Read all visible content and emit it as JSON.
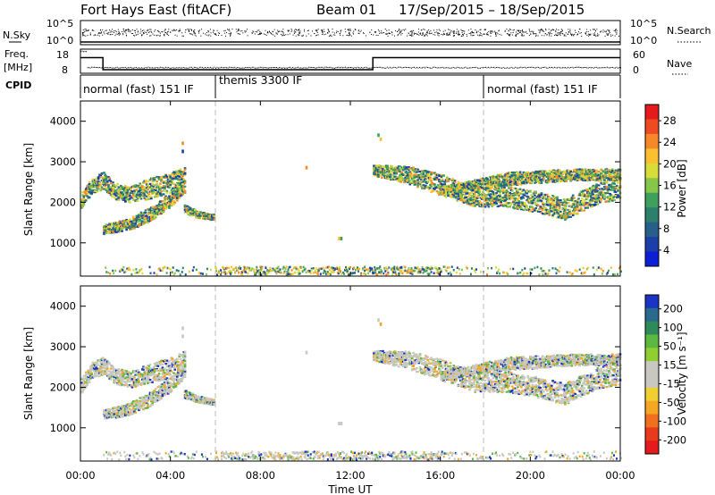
{
  "header": {
    "radar": "Fort Hays East (fitACF)",
    "beam": "Beam 01",
    "date_range": "17/Sep/2015 – 18/Sep/2015"
  },
  "strips": {
    "nsky_label": "N.Sky",
    "nsky_ticks": [
      "10^5",
      "10^0"
    ],
    "nsearch_label": "N.Search",
    "nsearch_ticks": [
      "10^5",
      "10^0"
    ],
    "freq_label_1": "Freq.",
    "freq_label_2": "[MHz]",
    "freq_ticks": [
      "18",
      "8"
    ],
    "nave_label": "Nave",
    "nave_ticks": [
      "60",
      "0"
    ],
    "cpid_label": "CPID"
  },
  "cpid_segments": [
    {
      "label": "normal (fast) 151 IF",
      "start": 0,
      "end": 6
    },
    {
      "label": "themis 3300 IF",
      "start": 6,
      "end": 18
    },
    {
      "label": "normal (fast) 151 IF",
      "start": 18,
      "end": 24
    }
  ],
  "colorbars": {
    "power": {
      "label": "Power [dB]",
      "ticks": [
        "28",
        "24",
        "20",
        "16",
        "12",
        "8",
        "4"
      ],
      "colors": [
        "#e41a1c",
        "#ef4b23",
        "#f7882a",
        "#fbbf2f",
        "#d8dc38",
        "#86c74a",
        "#3f9f5c",
        "#2d7f6c",
        "#255f8a",
        "#1b3ea8",
        "#0d1fd6"
      ]
    },
    "velocity": {
      "label": "Velocity [m s⁻¹]",
      "ticks": [
        "200",
        "100",
        "50",
        "15",
        "-15",
        "-50",
        "-100",
        "-200"
      ],
      "colors": [
        "#1a35c4",
        "#2a6a8c",
        "#2e8a5a",
        "#5cb840",
        "#8fd030",
        "#c8c8c0",
        "#c8c8c0",
        "#f0d030",
        "#f5a623",
        "#f07020",
        "#e83a1c",
        "#e41a1c"
      ]
    }
  },
  "axes": {
    "x_ticks": [
      "00:00",
      "04:00",
      "08:00",
      "12:00",
      "16:00",
      "20:00",
      "00:00"
    ],
    "x_label": "Time UT",
    "y_label": "Slant Range [km]",
    "y_ticks": [
      "4000",
      "3000",
      "2000",
      "1000"
    ]
  },
  "chart_data": {
    "type": "heatmap",
    "x_range_hours": [
      0,
      24
    ],
    "y_range_km": [
      180,
      4500
    ],
    "panels": [
      {
        "name": "Power",
        "colorbar_range_db": [
          0,
          30
        ],
        "dominant_colors": [
          "green",
          "yellow",
          "orange",
          "blue"
        ],
        "echo_regions": [
          {
            "t_start": 0.0,
            "t_end": 4.7,
            "r_min_km": 1200,
            "r_max_km": 3300
          },
          {
            "t_start": 4.5,
            "t_end": 6.0,
            "r_min_km": 1600,
            "r_max_km": 3600
          },
          {
            "t_start": 11.4,
            "t_end": 11.6,
            "r_min_km": 1100,
            "r_max_km": 1200
          },
          {
            "t_start": 13.0,
            "t_end": 24.0,
            "r_min_km": 1500,
            "r_max_km": 3000
          }
        ]
      },
      {
        "name": "Velocity",
        "colorbar_range_ms": [
          -250,
          250
        ],
        "dominant_colors": [
          "grey",
          "green",
          "blue",
          "orange"
        ],
        "echo_regions": [
          {
            "t_start": 0.0,
            "t_end": 4.7,
            "r_min_km": 1200,
            "r_max_km": 3300
          },
          {
            "t_start": 4.5,
            "t_end": 6.0,
            "r_min_km": 1600,
            "r_max_km": 3600
          },
          {
            "t_start": 11.4,
            "t_end": 11.6,
            "r_min_km": 1100,
            "r_max_km": 1200
          },
          {
            "t_start": 13.0,
            "t_end": 24.0,
            "r_min_km": 1500,
            "r_max_km": 3000
          }
        ]
      }
    ],
    "mode_change_times_h": [
      6,
      18
    ],
    "nave_start": 55,
    "nave_main": 15
  }
}
